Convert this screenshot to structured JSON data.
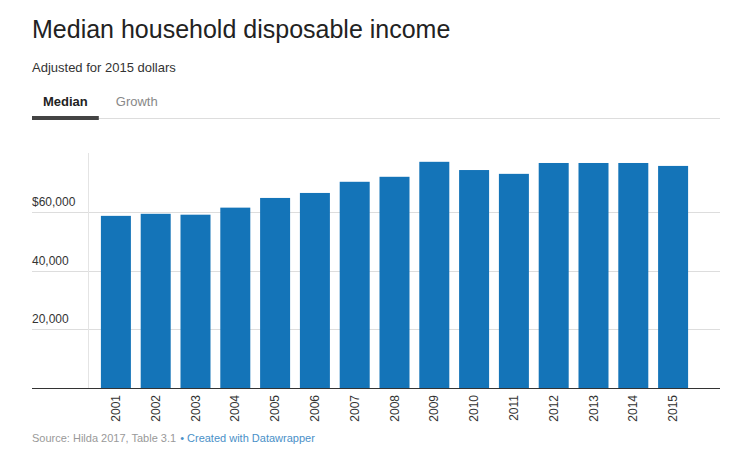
{
  "chart_data": {
    "type": "bar",
    "title": "Median household disposable income",
    "subtitle": "Adjusted for 2015 dollars",
    "tabs": [
      "Median",
      "Growth"
    ],
    "source": "Source: Hilda 2017, Table 3.1",
    "credit": "• Created with Datawrapper",
    "categories": [
      "2001",
      "2002",
      "2003",
      "2004",
      "2005",
      "2006",
      "2007",
      "2008",
      "2009",
      "2010",
      "2011",
      "2012",
      "2013",
      "2014",
      "2015"
    ],
    "values": [
      58600,
      59300,
      59000,
      61400,
      64700,
      66400,
      70200,
      71900,
      77000,
      74200,
      72900,
      76600,
      76600,
      76600,
      75600
    ],
    "color": "#1474b8",
    "ylim": [
      0,
      80000
    ],
    "yticks": [
      {
        "value": 20000,
        "label": "20,000"
      },
      {
        "value": 40000,
        "label": "40,000"
      },
      {
        "value": 60000,
        "label": "$60,000"
      }
    ],
    "grid": true
  }
}
